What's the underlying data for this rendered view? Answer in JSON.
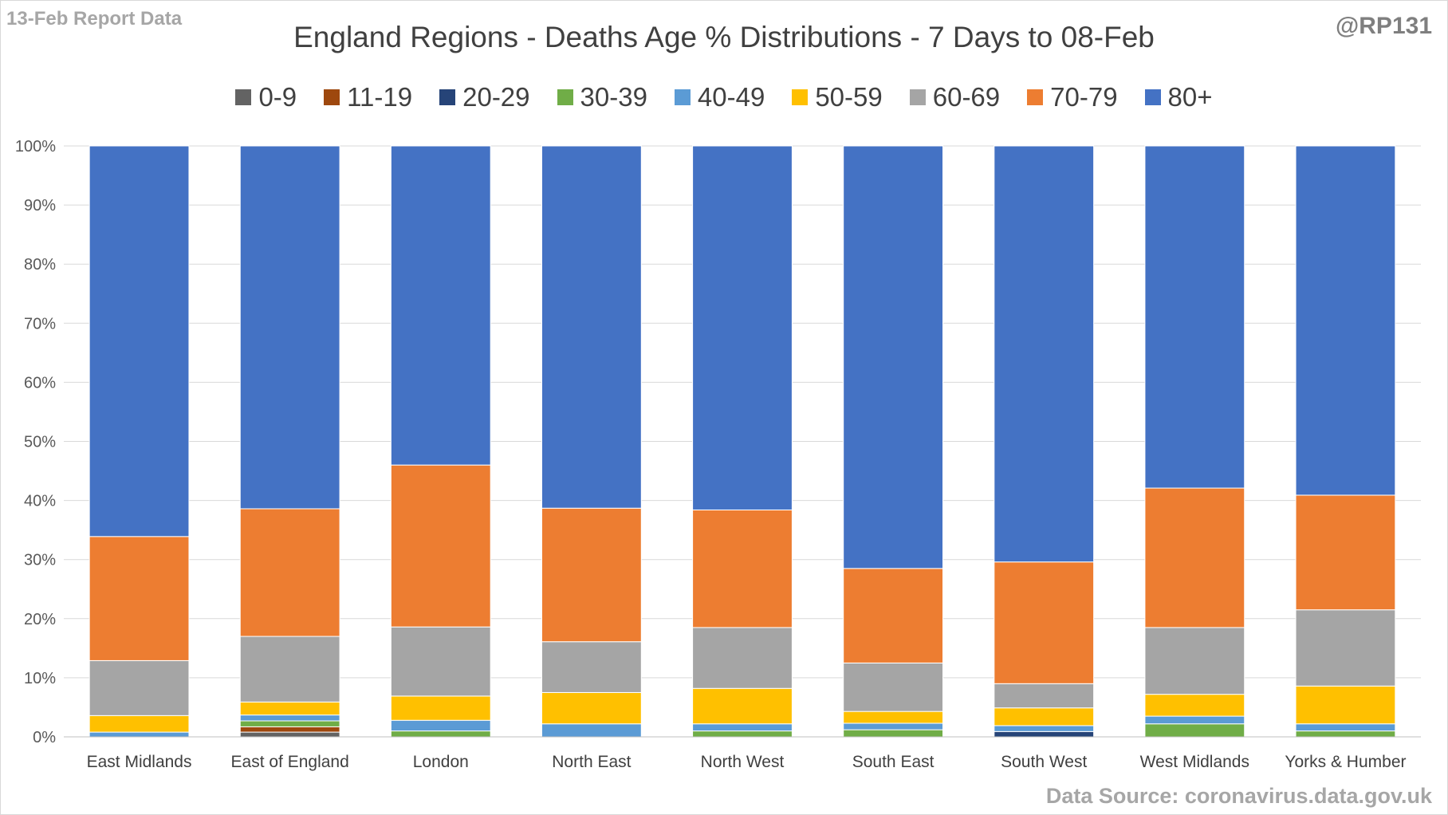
{
  "header": {
    "report_note": "13-Feb Report Data",
    "handle": "@RP131",
    "source": "Data Source: coronavirus.data.gov.uk"
  },
  "chart_data": {
    "type": "bar",
    "stacked": true,
    "title": "England Regions - Deaths Age % Distributions - 7 Days to 08-Feb",
    "xlabel": "",
    "ylabel": "",
    "ylim": [
      0,
      100
    ],
    "yticks": [
      "0%",
      "10%",
      "20%",
      "30%",
      "40%",
      "50%",
      "60%",
      "70%",
      "80%",
      "90%",
      "100%"
    ],
    "grid": true,
    "legend_position": "top",
    "categories": [
      "East Midlands",
      "East of England",
      "London",
      "North East",
      "North West",
      "South East",
      "South West",
      "West Midlands",
      "Yorks & Humber"
    ],
    "series": [
      {
        "name": "0-9",
        "color": "#636363",
        "values": [
          0.0,
          0.8,
          0.0,
          0.0,
          0.0,
          0.0,
          0.0,
          0.0,
          0.0
        ]
      },
      {
        "name": "11-19",
        "color": "#9e480e",
        "values": [
          0.0,
          0.9,
          0.0,
          0.0,
          0.0,
          0.0,
          0.0,
          0.0,
          0.0
        ]
      },
      {
        "name": "20-29",
        "color": "#264478",
        "values": [
          0.0,
          0.0,
          0.0,
          0.0,
          0.0,
          0.0,
          0.9,
          0.0,
          0.0
        ]
      },
      {
        "name": "30-39",
        "color": "#70ad47",
        "values": [
          0.0,
          1.0,
          1.0,
          0.0,
          1.0,
          1.2,
          0.0,
          2.2,
          1.0
        ]
      },
      {
        "name": "40-49",
        "color": "#5b9bd5",
        "values": [
          0.8,
          1.0,
          1.8,
          2.2,
          1.2,
          1.1,
          1.0,
          1.3,
          1.2
        ]
      },
      {
        "name": "50-59",
        "color": "#ffc000",
        "values": [
          2.8,
          2.2,
          4.1,
          5.3,
          6.0,
          2.0,
          3.0,
          3.7,
          6.4
        ]
      },
      {
        "name": "60-69",
        "color": "#a5a5a5",
        "values": [
          9.3,
          11.1,
          11.7,
          8.6,
          10.3,
          8.2,
          4.1,
          11.3,
          12.9
        ]
      },
      {
        "name": "70-79",
        "color": "#ed7d31",
        "values": [
          21.0,
          21.6,
          27.4,
          22.6,
          19.9,
          16.0,
          20.6,
          23.6,
          19.4
        ]
      },
      {
        "name": "80+",
        "color": "#4472c4",
        "values": [
          66.1,
          61.4,
          54.0,
          61.3,
          61.6,
          71.5,
          70.4,
          57.9,
          59.1
        ]
      }
    ]
  }
}
